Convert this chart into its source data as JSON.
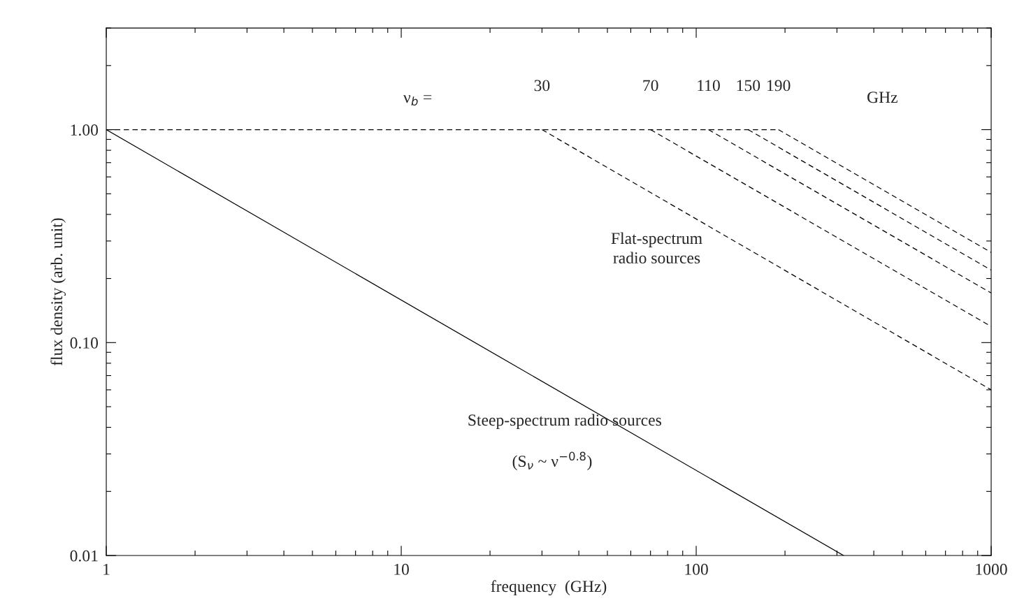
{
  "chart_data": {
    "type": "line",
    "xlabel": "frequency  (GHz)",
    "ylabel": "flux density (arb. unit)",
    "log": "xy",
    "xlim": [
      1,
      1000
    ],
    "ylim": [
      0.01,
      3
    ],
    "xticks": [
      1,
      10,
      100,
      1000
    ],
    "yticks": [
      {
        "value": 0.01,
        "label": "0.01"
      },
      {
        "value": 0.1,
        "label": "0.10"
      },
      {
        "value": 1,
        "label": "1.00"
      }
    ],
    "grid": false,
    "series": [
      {
        "color": "#000000",
        "line_style": "solid",
        "x": [
          1,
          316
        ],
        "values": [
          1,
          0.01
        ]
      },
      {
        "color": "#000000",
        "line_style": "dashed",
        "x": [
          1,
          190
        ],
        "values": [
          1,
          1
        ]
      },
      {
        "color": "#000000",
        "line_style": "dashed",
        "x": [
          30,
          1000
        ],
        "values": [
          1,
          0.06
        ]
      },
      {
        "color": "#000000",
        "line_style": "dashed",
        "x": [
          70,
          1000
        ],
        "values": [
          1,
          0.119
        ]
      },
      {
        "color": "#000000",
        "line_style": "dashed",
        "x": [
          110,
          1000
        ],
        "values": [
          1,
          0.171
        ]
      },
      {
        "color": "#000000",
        "line_style": "dashed",
        "x": [
          150,
          1000
        ],
        "values": [
          1,
          0.219
        ]
      },
      {
        "color": "#000000",
        "line_style": "dashed",
        "x": [
          190,
          1000
        ],
        "values": [
          1,
          0.265
        ]
      }
    ],
    "annotations": [
      "ν$_{b}$ =",
      {
        "text": "30",
        "x": 30,
        "y": 1
      },
      {
        "text": "70",
        "x": 70,
        "y": 1
      },
      {
        "text": "110",
        "x": 110,
        "y": 1
      },
      {
        "text": "150",
        "x": 150,
        "y": 1
      },
      {
        "text": "190",
        "x": 190,
        "y": 1
      },
      "GHz",
      "Flat-spectrum\nradio sources",
      "Steep-spectrum radio sources",
      "(S$_{ν}$ ~ ν$^{−0.8}$)"
    ]
  }
}
